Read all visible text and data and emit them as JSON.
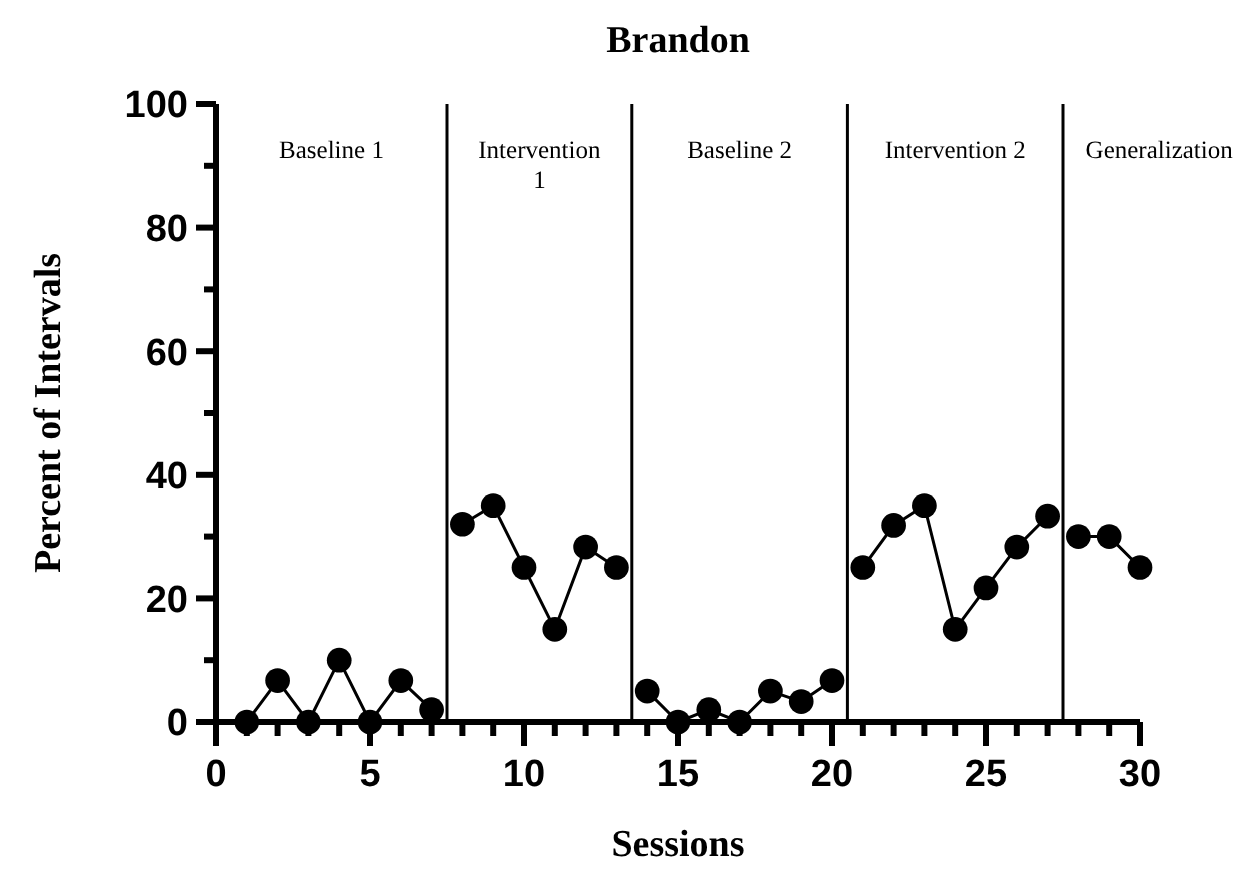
{
  "chart_data": {
    "type": "line",
    "title": "Brandon",
    "xlabel": "Sessions",
    "ylabel": "Percent of Intervals",
    "marker": "circle",
    "xlim": [
      0,
      30
    ],
    "ylim": [
      0,
      100
    ],
    "xticks": [
      0,
      {
        "value": 1,
        "label": null
      },
      {
        "value": 2,
        "label": null
      },
      {
        "value": 3,
        "label": null
      },
      {
        "value": 4,
        "label": null
      },
      5,
      {
        "value": 6,
        "label": null
      },
      {
        "value": 7,
        "label": null
      },
      {
        "value": 8,
        "label": null
      },
      {
        "value": 9,
        "label": null
      },
      10,
      {
        "value": 11,
        "label": null
      },
      {
        "value": 12,
        "label": null
      },
      {
        "value": 13,
        "label": null
      },
      {
        "value": 14,
        "label": null
      },
      15,
      {
        "value": 16,
        "label": null
      },
      {
        "value": 17,
        "label": null
      },
      {
        "value": 18,
        "label": null
      },
      {
        "value": 19,
        "label": null
      },
      20,
      {
        "value": 21,
        "label": null
      },
      {
        "value": 22,
        "label": null
      },
      {
        "value": 23,
        "label": null
      },
      {
        "value": 24,
        "label": null
      },
      25,
      {
        "value": 26,
        "label": null
      },
      {
        "value": 27,
        "label": null
      },
      {
        "value": 28,
        "label": null
      },
      {
        "value": 29,
        "label": null
      },
      30
    ],
    "yticks": [
      0,
      {
        "value": 10,
        "label": null
      },
      20,
      {
        "value": 30,
        "label": null
      },
      40,
      {
        "value": 50,
        "label": null
      },
      60,
      {
        "value": 70,
        "label": null
      },
      80,
      {
        "value": 90,
        "label": null
      },
      100
    ],
    "series": [
      {
        "color": "#000000",
        "x": [
          1,
          2,
          3,
          4,
          5,
          6,
          7
        ],
        "values": [
          0,
          6.7,
          0,
          10,
          0,
          6.7,
          2
        ]
      },
      {
        "color": "#000000",
        "x": [
          8,
          9,
          10,
          11,
          12,
          13
        ],
        "values": [
          32,
          35,
          25,
          15,
          28.3,
          25
        ]
      },
      {
        "color": "#000000",
        "x": [
          14,
          15,
          16,
          17,
          18,
          19,
          20
        ],
        "values": [
          5,
          0,
          2,
          0,
          5,
          3.3,
          6.7
        ]
      },
      {
        "color": "#000000",
        "x": [
          21,
          22,
          23,
          24,
          25,
          26,
          27
        ],
        "values": [
          25,
          31.8,
          35,
          15,
          21.7,
          28.3,
          33.3
        ]
      },
      {
        "color": "#000000",
        "x": [
          28,
          29,
          30
        ],
        "values": [
          30,
          30,
          25
        ]
      }
    ],
    "ref_lines": [
      {
        "axis": "x",
        "value": 7.5,
        "color": "#000000"
      },
      {
        "axis": "x",
        "value": 13.5,
        "color": "#000000"
      },
      {
        "axis": "x",
        "value": 20.5,
        "color": "#000000"
      },
      {
        "axis": "x",
        "value": 27.5,
        "color": "#000000"
      }
    ],
    "annotations": [
      "Baseline 1",
      "Intervention 1",
      "Baseline 2",
      "Intervention 2",
      "Generalization"
    ]
  }
}
